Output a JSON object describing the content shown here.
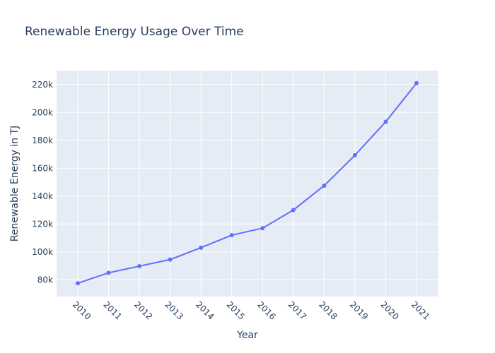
{
  "chart_data": {
    "type": "line",
    "title": "Renewable Energy Usage Over Time",
    "xlabel": "Year",
    "ylabel": "Renewable Energy in TJ",
    "categories": [
      "2010",
      "2011",
      "2012",
      "2013",
      "2014",
      "2015",
      "2016",
      "2017",
      "2018",
      "2019",
      "2020",
      "2021"
    ],
    "series": [
      {
        "values": [
          77500,
          85000,
          89800,
          94500,
          103000,
          112000,
          117000,
          130000,
          147500,
          169300,
          193300,
          221000
        ]
      }
    ],
    "ylim": [
      68000,
      230000
    ],
    "yticks": [
      80000,
      100000,
      120000,
      140000,
      160000,
      180000,
      200000,
      220000
    ],
    "ytick_labels": [
      "80k",
      "100k",
      "120k",
      "140k",
      "160k",
      "180k",
      "200k",
      "220k"
    ],
    "grid": true,
    "legend": "none",
    "colors": {
      "line": "#636efa",
      "plot_bg": "#e5ecf6",
      "grid": "#ffffff",
      "text": "#2a3f5f"
    }
  }
}
